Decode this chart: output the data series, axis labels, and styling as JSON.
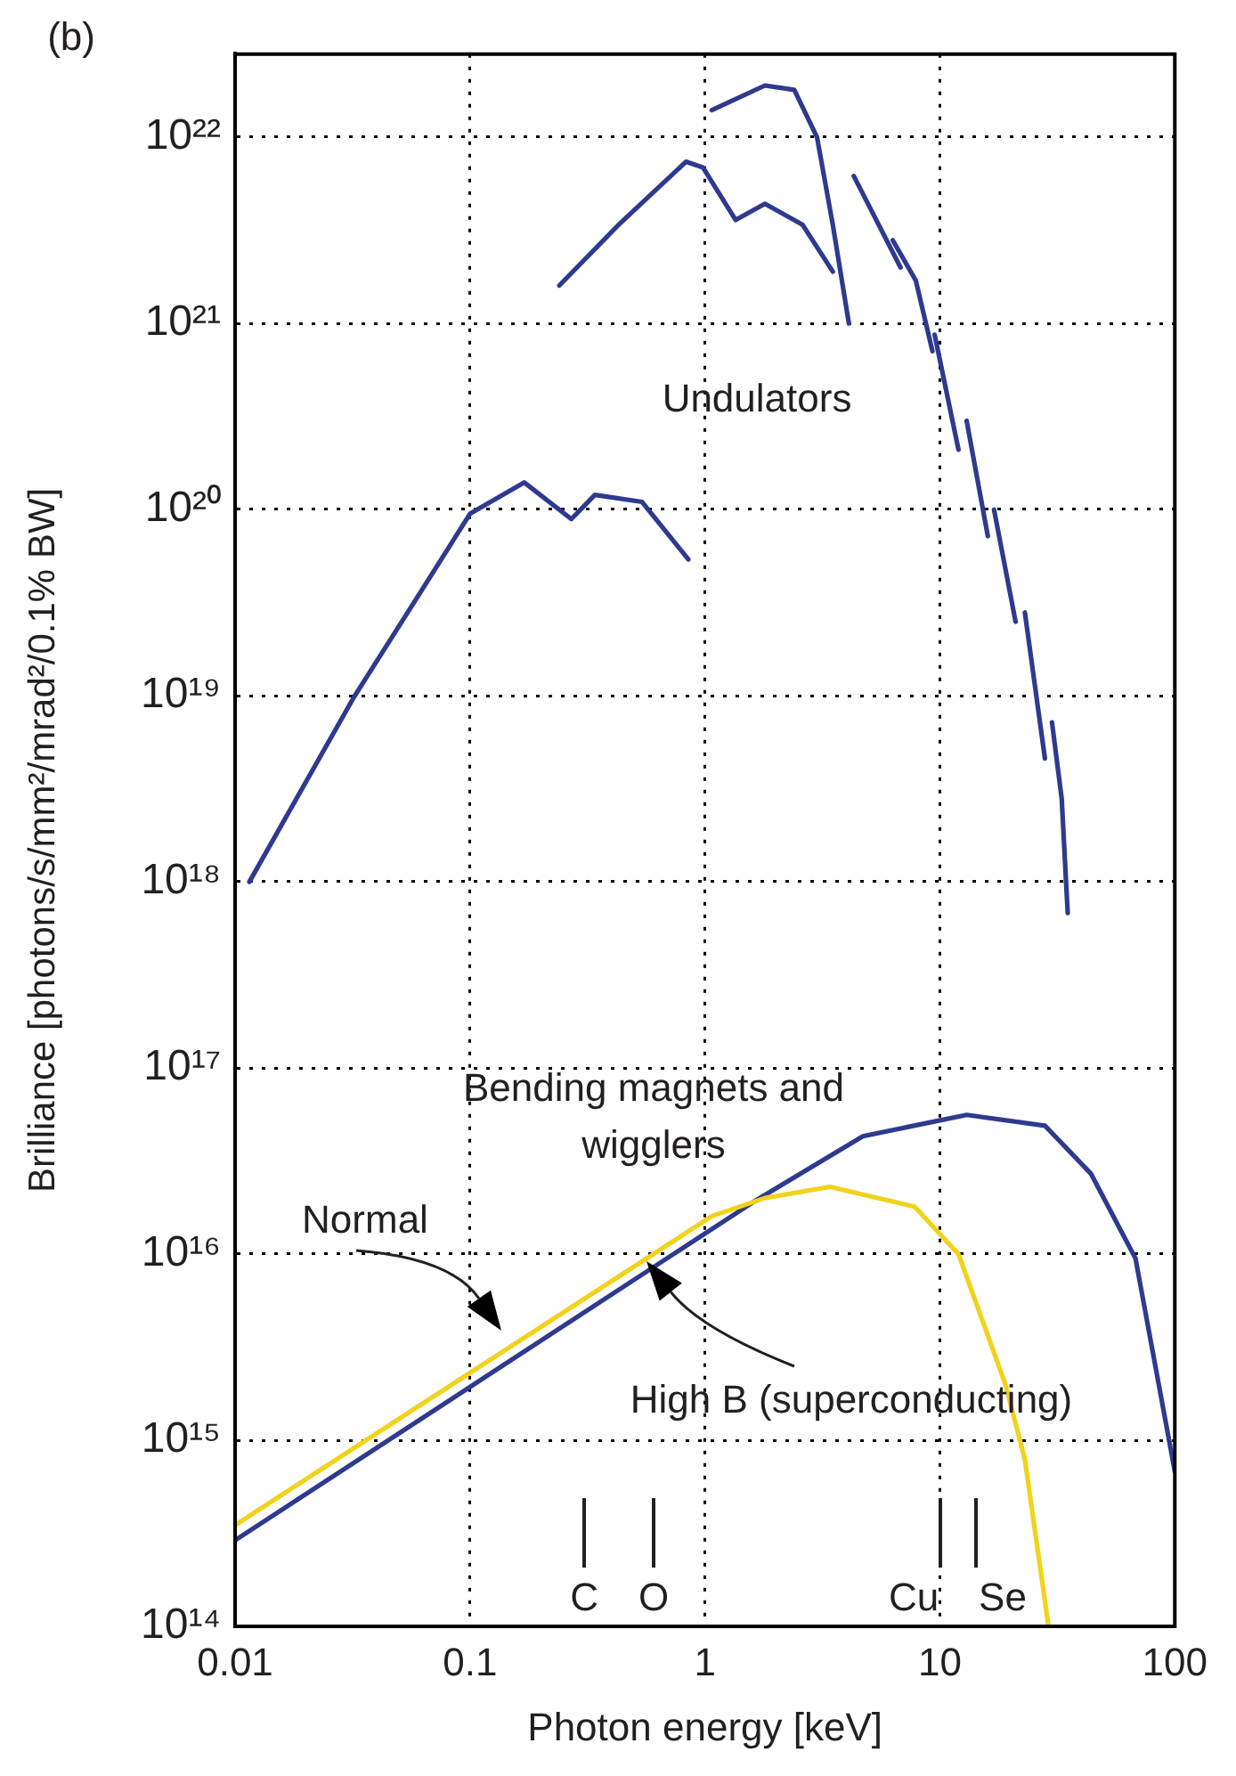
{
  "chart_data": {
    "type": "line",
    "xlabel": "Photon energy [keV]",
    "ylabel": "Brilliance [photons/s/mm²/mrad²/0.1% BW]",
    "log": "xy",
    "xlim": [
      0.01,
      100
    ],
    "ylim": [
      100000000000000.0,
      2.8e+22
    ],
    "xticks": [
      0.01,
      0.1,
      1,
      10,
      100
    ],
    "yticks": [
      {
        "value": 100000000000000.0,
        "label": "10¹⁴"
      },
      {
        "value": 1000000000000000.0,
        "label": "10¹⁵"
      },
      {
        "value": 1e+16,
        "label": "10¹⁶"
      },
      {
        "value": 1e+17,
        "label": "10¹⁷"
      },
      {
        "value": 1e+18,
        "label": "10¹⁸"
      },
      {
        "value": 1e+19,
        "label": "10¹⁹"
      },
      {
        "value": 1e+20,
        "label": "10²⁰"
      },
      {
        "value": 1e+21,
        "label": "10²¹"
      },
      {
        "value": 1e+22,
        "label": "10²²"
      }
    ],
    "grid": true,
    "legend": false,
    "marker": "none",
    "line_style": "solid",
    "series": [
      {
        "color": "#2e3a8f",
        "x": [
          0.0115,
          0.032,
          0.058,
          0.1,
          0.17,
          0.27,
          0.34,
          0.54,
          0.85
        ],
        "values": [
          1e+18,
          9.8e+18,
          3.2e+19,
          9.5e+19,
          1.4e+20,
          8.9e+19,
          1.2e+20,
          1.1e+20,
          5.4e+19
        ]
      },
      {
        "color": "#2e3a8f",
        "x": [
          0.24,
          0.43,
          0.83,
          0.98,
          1.35,
          1.8,
          2.6,
          3.5
        ],
        "values": [
          1.6e+21,
          3.4e+21,
          7.4e+21,
          6.9e+21,
          3.6e+21,
          4.4e+21,
          3.4e+21,
          1.9e+21
        ]
      },
      {
        "color": "#2e3a8f",
        "x": [
          1.07,
          1.8,
          2.4,
          3.0,
          3.5,
          4.1
        ],
        "values": [
          1.4e+22,
          1.9e+22,
          1.8e+22,
          1e+22,
          3.4e+21,
          1e+21
        ]
      },
      {
        "color": "#2e3a8f",
        "x": [
          4.3,
          6.8
        ],
        "values": [
          6.2e+21,
          2e+21
        ]
      },
      {
        "color": "#2e3a8f",
        "x": [
          6.3,
          7.9,
          9.3
        ],
        "values": [
          2.8e+21,
          1.7e+21,
          7.1e+20
        ]
      },
      {
        "color": "#2e3a8f",
        "x": [
          9.5,
          12
        ],
        "values": [
          8.7e+20,
          2.1e+20
        ]
      },
      {
        "color": "#2e3a8f",
        "x": [
          13,
          16
        ],
        "values": [
          3e+20,
          7.2e+19
        ]
      },
      {
        "color": "#2e3a8f",
        "x": [
          17,
          21
        ],
        "values": [
          1e+20,
          2.5e+19
        ]
      },
      {
        "color": "#2e3a8f",
        "x": [
          23,
          28
        ],
        "values": [
          2.8e+19,
          4.6e+18
        ]
      },
      {
        "color": "#2e3a8f",
        "x": [
          30,
          33,
          35
        ],
        "values": [
          7.2e+18,
          2.8e+18,
          6.8e+17
        ]
      },
      {
        "color": "#f2d21b",
        "x": [
          0.01,
          1.07,
          1.8,
          3.4,
          7.8,
          12,
          19,
          23,
          29
        ],
        "values": [
          350000000000000.0,
          1.6e+16,
          2e+16,
          2.3e+16,
          1.8e+16,
          1e+16,
          2000000000000000.0,
          790000000000000.0,
          100000000000000.0
        ]
      },
      {
        "color": "#2e3a8f",
        "x": [
          0.01,
          1.6,
          4.7,
          13,
          28,
          44,
          68,
          100
        ],
        "values": [
          290000000000000.0,
          1.9e+16,
          4.3e+16,
          5.6e+16,
          4.9e+16,
          2.7e+16,
          9500000000000000.0,
          680000000000000.0
        ]
      }
    ],
    "annotations": [
      "(b)",
      "Undulators",
      "Bending magnets and wigglers",
      "Normal",
      "High B (superconducting)",
      "C",
      "O",
      "Cu",
      "Se"
    ]
  }
}
